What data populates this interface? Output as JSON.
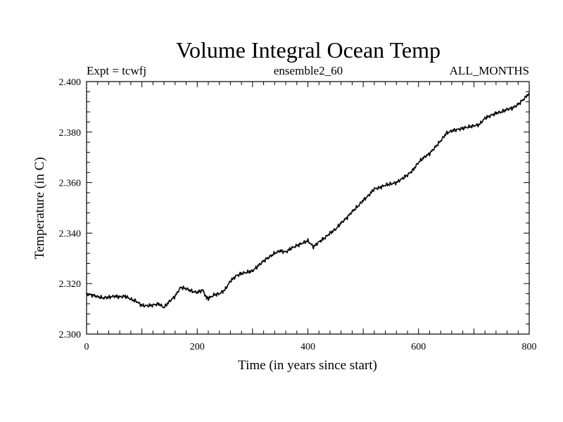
{
  "chart_data": {
    "type": "line",
    "title": "Volume Integral Ocean Temp",
    "subtitle_left": "Expt = tcwfj",
    "subtitle_center": "ensemble2_60",
    "subtitle_right": "ALL_MONTHS",
    "xlabel": "Time (in years since start)",
    "ylabel": "Temperature (in C)",
    "xlim": [
      0,
      800
    ],
    "ylim": [
      2.3,
      2.4
    ],
    "x_ticks": [
      0,
      200,
      400,
      600,
      800
    ],
    "x_tick_labels": [
      "0",
      "200",
      "400",
      "600",
      "800"
    ],
    "y_ticks": [
      2.3,
      2.32,
      2.34,
      2.36,
      2.38,
      2.4
    ],
    "y_tick_labels": [
      "2.300",
      "2.320",
      "2.340",
      "2.360",
      "2.380",
      "2.400"
    ],
    "grid": false,
    "series": [
      {
        "name": "Volume Integral Ocean Temp",
        "color": "#000000",
        "x": [
          0,
          10,
          20,
          30,
          40,
          50,
          60,
          70,
          80,
          90,
          100,
          110,
          120,
          130,
          140,
          150,
          160,
          170,
          180,
          190,
          200,
          210,
          215,
          220,
          230,
          240,
          250,
          260,
          270,
          280,
          290,
          300,
          310,
          320,
          330,
          340,
          350,
          360,
          370,
          380,
          390,
          400,
          410,
          420,
          430,
          440,
          450,
          460,
          470,
          480,
          490,
          500,
          510,
          520,
          530,
          540,
          550,
          560,
          570,
          580,
          590,
          600,
          610,
          620,
          630,
          640,
          650,
          660,
          670,
          680,
          690,
          700,
          710,
          720,
          730,
          740,
          750,
          760,
          770,
          780,
          790,
          800
        ],
        "y": [
          2.3158,
          2.3155,
          2.3148,
          2.3143,
          2.3146,
          2.315,
          2.3147,
          2.315,
          2.3138,
          2.313,
          2.3113,
          2.3112,
          2.3115,
          2.312,
          2.3105,
          2.313,
          2.315,
          2.3185,
          2.318,
          2.317,
          2.3165,
          2.3175,
          2.315,
          2.314,
          2.3155,
          2.316,
          2.3175,
          2.321,
          2.323,
          2.324,
          2.3245,
          2.325,
          2.327,
          2.329,
          2.3305,
          2.332,
          2.333,
          2.3325,
          2.334,
          2.335,
          2.336,
          2.337,
          2.3345,
          2.3365,
          2.338,
          2.34,
          2.3415,
          2.344,
          2.346,
          2.3485,
          2.3505,
          2.353,
          2.355,
          2.3575,
          2.358,
          2.359,
          2.3595,
          2.36,
          2.3615,
          2.363,
          2.365,
          2.368,
          2.37,
          2.3715,
          2.374,
          2.3765,
          2.3795,
          2.3805,
          2.381,
          2.3815,
          2.382,
          2.3825,
          2.383,
          2.3855,
          2.3865,
          2.3875,
          2.388,
          2.389,
          2.3895,
          2.391,
          2.393,
          2.3955
        ]
      }
    ]
  }
}
